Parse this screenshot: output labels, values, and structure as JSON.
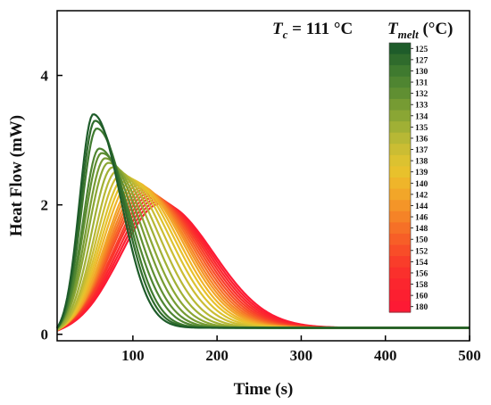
{
  "chart_data": {
    "type": "line",
    "xlabel": "Time (s)",
    "ylabel": "Heat Flow (mW)",
    "xlim": [
      10,
      500
    ],
    "ylim": [
      -0.1,
      5.0
    ],
    "x_ticks": [
      100,
      200,
      300,
      400,
      500
    ],
    "y_ticks": [
      0,
      2,
      4
    ],
    "annotation": {
      "main": "T",
      "sub": "c",
      "rest": " = 111 °C"
    },
    "legend_title": {
      "main": "T",
      "sub": "melt",
      "rest": " (°C)"
    },
    "legend_placement": "top-right",
    "grid": false,
    "tail_baseline": 0.1,
    "series": [
      {
        "name": "125",
        "color": "#1e5c2a",
        "peak_time": 53,
        "peak_height": 3.4,
        "rise_width": 23,
        "fall_width": 46
      },
      {
        "name": "127",
        "color": "#2f6b2c",
        "peak_time": 55,
        "peak_height": 3.3,
        "rise_width": 24,
        "fall_width": 48
      },
      {
        "name": "130",
        "color": "#3f7a2f",
        "peak_time": 57,
        "peak_height": 3.18,
        "rise_width": 25,
        "fall_width": 50
      },
      {
        "name": "131",
        "color": "#4f8531",
        "peak_time": 60,
        "peak_height": 2.87,
        "rise_width": 27,
        "fall_width": 54
      },
      {
        "name": "132",
        "color": "#608f32",
        "peak_time": 63,
        "peak_height": 2.8,
        "rise_width": 29,
        "fall_width": 57
      },
      {
        "name": "133",
        "color": "#769b33",
        "peak_time": 67,
        "peak_height": 2.72,
        "rise_width": 31,
        "fall_width": 60
      },
      {
        "name": "134",
        "color": "#8aa634",
        "peak_time": 71,
        "peak_height": 2.65,
        "rise_width": 33,
        "fall_width": 63
      },
      {
        "name": "135",
        "color": "#a0b035",
        "peak_time": 76,
        "peak_height": 2.58,
        "rise_width": 35,
        "fall_width": 66
      },
      {
        "name": "136",
        "color": "#b7b835",
        "peak_time": 81,
        "peak_height": 2.52,
        "rise_width": 37,
        "fall_width": 69
      },
      {
        "name": "137",
        "color": "#cbbd33",
        "peak_time": 86,
        "peak_height": 2.47,
        "rise_width": 40,
        "fall_width": 72
      },
      {
        "name": "138",
        "color": "#dcc230",
        "peak_time": 91,
        "peak_height": 2.43,
        "rise_width": 43,
        "fall_width": 74
      },
      {
        "name": "139",
        "color": "#e8c12c",
        "peak_time": 95,
        "peak_height": 2.4,
        "rise_width": 45,
        "fall_width": 76
      },
      {
        "name": "140",
        "color": "#efb52a",
        "peak_time": 99,
        "peak_height": 2.37,
        "rise_width": 47,
        "fall_width": 77
      },
      {
        "name": "142",
        "color": "#f2a629",
        "peak_time": 103,
        "peak_height": 2.33,
        "rise_width": 49,
        "fall_width": 78
      },
      {
        "name": "144",
        "color": "#f49528",
        "peak_time": 106,
        "peak_height": 2.3,
        "rise_width": 51,
        "fall_width": 79
      },
      {
        "name": "146",
        "color": "#f58327",
        "peak_time": 109,
        "peak_height": 2.26,
        "rise_width": 53,
        "fall_width": 80
      },
      {
        "name": "148",
        "color": "#f67027",
        "peak_time": 112,
        "peak_height": 2.23,
        "rise_width": 55,
        "fall_width": 81
      },
      {
        "name": "150",
        "color": "#f75e27",
        "peak_time": 115,
        "peak_height": 2.2,
        "rise_width": 57,
        "fall_width": 82
      },
      {
        "name": "152",
        "color": "#f84d28",
        "peak_time": 118,
        "peak_height": 2.17,
        "rise_width": 59,
        "fall_width": 83
      },
      {
        "name": "154",
        "color": "#f93d2a",
        "peak_time": 121,
        "peak_height": 2.14,
        "rise_width": 60,
        "fall_width": 84
      },
      {
        "name": "156",
        "color": "#fa302c",
        "peak_time": 124,
        "peak_height": 2.11,
        "rise_width": 62,
        "fall_width": 85
      },
      {
        "name": "158",
        "color": "#fb262e",
        "peak_time": 127,
        "peak_height": 2.08,
        "rise_width": 63,
        "fall_width": 86
      },
      {
        "name": "160",
        "color": "#fc1f30",
        "peak_time": 130,
        "peak_height": 2.05,
        "rise_width": 64,
        "fall_width": 87
      },
      {
        "name": "180",
        "color": "#fd1a34",
        "peak_time": 133,
        "peak_height": 2.02,
        "rise_width": 65,
        "fall_width": 88
      }
    ]
  }
}
